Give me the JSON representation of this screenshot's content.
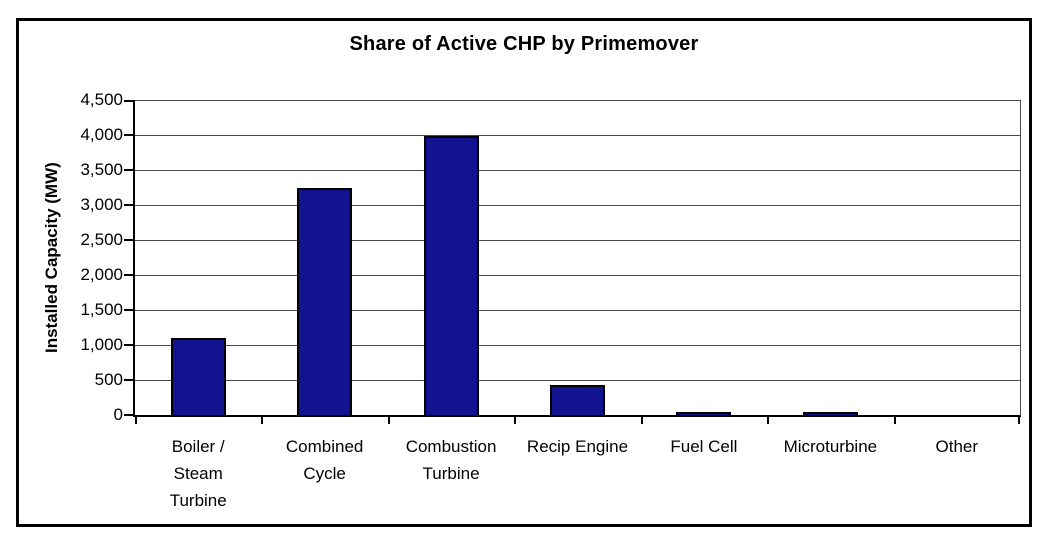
{
  "page": {
    "background": "#ffffff",
    "frame_border_color": "#000000"
  },
  "chart_data": {
    "type": "bar",
    "title": "Share of Active CHP by Primemover",
    "xlabel": "",
    "ylabel": "Installed Capacity (MW)",
    "ylim": [
      0,
      4500
    ],
    "ytick_interval": 500,
    "ytick_labels": [
      "0",
      "500",
      "1,000",
      "1,500",
      "2,000",
      "2,500",
      "3,000",
      "3,500",
      "4,000",
      "4,500"
    ],
    "grid": true,
    "legend": "none",
    "bar_color": "#131392",
    "bar_border_color": "#000000",
    "gridline_color": "#4a4a4a",
    "categories": [
      "Boiler / Steam Turbine",
      "Combined Cycle",
      "Combustion Turbine",
      "Recip Engine",
      "Fuel Cell",
      "Microturbine",
      "Other"
    ],
    "categories_display": [
      "Boiler /\nSteam\nTurbine",
      "Combined\nCycle",
      "Combustion\nTurbine",
      "Recip Engine",
      "Fuel Cell",
      "Microturbine",
      "Other"
    ],
    "values": [
      1100,
      3250,
      3980,
      435,
      45,
      45,
      0
    ],
    "units": "MW"
  }
}
